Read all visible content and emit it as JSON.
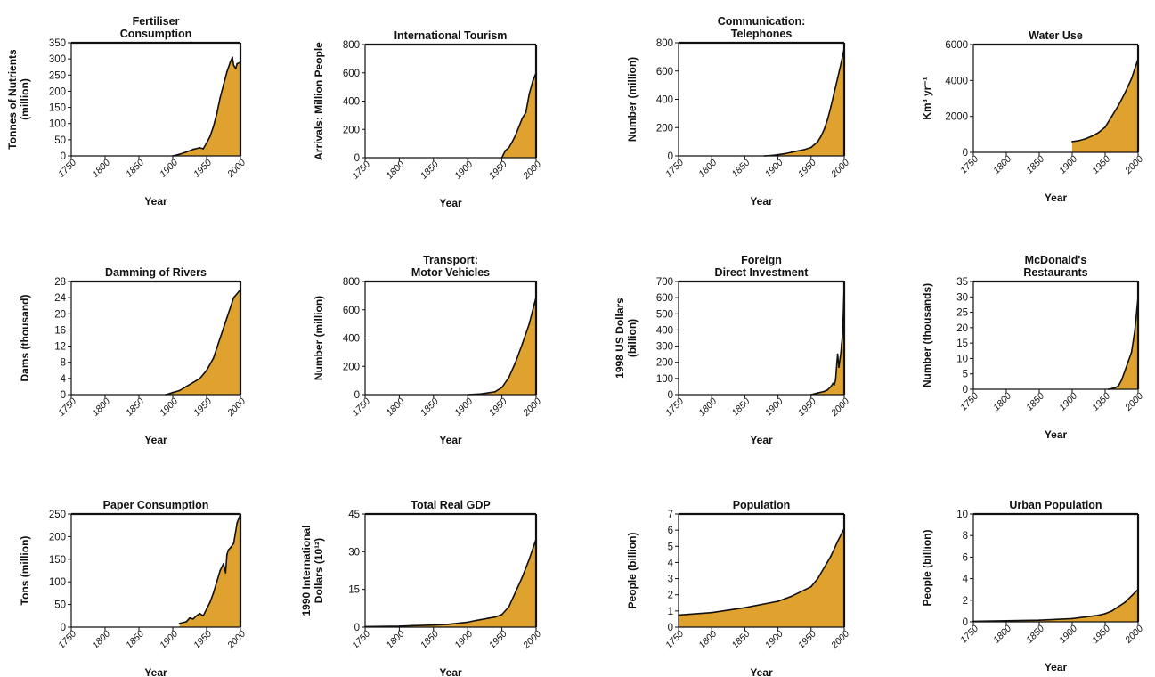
{
  "colors": {
    "fill": "#E0A22E",
    "line": "#111111",
    "frame": "#111111",
    "background": "#ffffff"
  },
  "chart_data": [
    {
      "type": "area",
      "title": [
        "Fertiliser",
        "Consumption"
      ],
      "ylabel": [
        "Tonnes of Nutrients",
        "(million)"
      ],
      "xlabel": "Year",
      "xlim": [
        1750,
        2000
      ],
      "ylim": [
        0,
        350
      ],
      "xticks": [
        "1750",
        "1800",
        "1850",
        "1900",
        "1950",
        "2000"
      ],
      "yticks": [
        "0",
        "50",
        "100",
        "150",
        "200",
        "250",
        "300",
        "350"
      ],
      "x": [
        1900,
        1910,
        1920,
        1930,
        1940,
        1945,
        1950,
        1955,
        1960,
        1965,
        1970,
        1975,
        1980,
        1985,
        1988,
        1990,
        1993,
        1995,
        2000
      ],
      "y": [
        0,
        5,
        12,
        20,
        25,
        22,
        40,
        60,
        90,
        130,
        180,
        220,
        260,
        290,
        305,
        280,
        270,
        285,
        290
      ]
    },
    {
      "type": "area",
      "title": [
        "International Tourism"
      ],
      "ylabel": [
        "Arrivals: Million People"
      ],
      "xlabel": "Year",
      "xlim": [
        1750,
        2000
      ],
      "ylim": [
        0,
        800
      ],
      "xticks": [
        "1750",
        "1800",
        "1850",
        "1900",
        "1950",
        "2000"
      ],
      "yticks": [
        "0",
        "200",
        "400",
        "600",
        "800"
      ],
      "x": [
        1950,
        1955,
        1960,
        1965,
        1970,
        1975,
        1980,
        1985,
        1990,
        1995,
        2000
      ],
      "y": [
        0,
        50,
        70,
        110,
        160,
        220,
        280,
        320,
        450,
        540,
        600
      ]
    },
    {
      "type": "area",
      "title": [
        "Communication:",
        "Telephones"
      ],
      "ylabel": [
        "Number (million)"
      ],
      "xlabel": "Year",
      "xlim": [
        1750,
        2000
      ],
      "ylim": [
        0,
        800
      ],
      "xticks": [
        "1750",
        "1800",
        "1850",
        "1900",
        "1950",
        "2000"
      ],
      "yticks": [
        "0",
        "200",
        "400",
        "600",
        "800"
      ],
      "x": [
        1880,
        1890,
        1900,
        1910,
        1920,
        1930,
        1940,
        1950,
        1960,
        1965,
        1970,
        1975,
        1980,
        1985,
        1990,
        1995,
        2000
      ],
      "y": [
        0,
        3,
        8,
        15,
        25,
        35,
        45,
        60,
        100,
        140,
        190,
        260,
        350,
        450,
        550,
        650,
        760
      ]
    },
    {
      "type": "area",
      "title": [
        "Water Use"
      ],
      "ylabel": [
        "Km³ yr⁻¹"
      ],
      "xlabel": "Year",
      "xlim": [
        1750,
        2000
      ],
      "ylim": [
        0,
        6000
      ],
      "xticks": [
        "1750",
        "1800",
        "1850",
        "1900",
        "1950",
        "2000"
      ],
      "yticks": [
        "0",
        "2000",
        "4000",
        "6000"
      ],
      "x": [
        1900,
        1910,
        1920,
        1930,
        1940,
        1950,
        1960,
        1970,
        1980,
        1990,
        2000
      ],
      "y": [
        600,
        650,
        750,
        900,
        1100,
        1400,
        2000,
        2600,
        3300,
        4100,
        5200
      ]
    },
    {
      "type": "area",
      "title": [
        "Damming of Rivers"
      ],
      "ylabel": [
        "Dams (thousand)"
      ],
      "xlabel": "Year",
      "xlim": [
        1750,
        2000
      ],
      "ylim": [
        0,
        28
      ],
      "xticks": [
        "1750",
        "1800",
        "1850",
        "1900",
        "1950",
        "2000"
      ],
      "yticks": [
        "0",
        "4",
        "8",
        "12",
        "16",
        "20",
        "24",
        "28"
      ],
      "x": [
        1890,
        1900,
        1910,
        1920,
        1930,
        1940,
        1950,
        1960,
        1970,
        1980,
        1990,
        2000
      ],
      "y": [
        0,
        0.5,
        1,
        2,
        3,
        4,
        6,
        9,
        14,
        19,
        24,
        26
      ]
    },
    {
      "type": "area",
      "title": [
        "Transport:",
        "Motor Vehicles"
      ],
      "ylabel": [
        "Number (million)"
      ],
      "xlabel": "Year",
      "xlim": [
        1750,
        2000
      ],
      "ylim": [
        0,
        800
      ],
      "xticks": [
        "1750",
        "1800",
        "1850",
        "1900",
        "1950",
        "2000"
      ],
      "yticks": [
        "0",
        "200",
        "400",
        "600",
        "800"
      ],
      "x": [
        1900,
        1920,
        1940,
        1950,
        1960,
        1970,
        1980,
        1990,
        2000
      ],
      "y": [
        0,
        5,
        20,
        50,
        120,
        230,
        360,
        500,
        690
      ]
    },
    {
      "type": "area",
      "title": [
        "Foreign",
        "Direct Investment"
      ],
      "ylabel": [
        "1998 US Dollars",
        "(billion)"
      ],
      "xlabel": "Year",
      "xlim": [
        1750,
        2000
      ],
      "ylim": [
        0,
        700
      ],
      "xticks": [
        "1750",
        "1800",
        "1850",
        "1900",
        "1950",
        "2000"
      ],
      "yticks": [
        "0",
        "100",
        "200",
        "300",
        "400",
        "500",
        "600",
        "700"
      ],
      "x": [
        1950,
        1960,
        1970,
        1975,
        1980,
        1983,
        1985,
        1987,
        1989,
        1990,
        1992,
        1994,
        1995,
        1996,
        1997,
        1998,
        1999,
        2000
      ],
      "y": [
        0,
        10,
        20,
        30,
        50,
        70,
        60,
        90,
        200,
        250,
        170,
        230,
        260,
        310,
        350,
        420,
        550,
        680
      ]
    },
    {
      "type": "area",
      "title": [
        "McDonald's",
        "Restaurants"
      ],
      "ylabel": [
        "Number (thousands)"
      ],
      "xlabel": "Year",
      "xlim": [
        1750,
        2000
      ],
      "ylim": [
        0,
        35
      ],
      "xticks": [
        "1750",
        "1800",
        "1850",
        "1900",
        "1950",
        "2000"
      ],
      "yticks": [
        "0",
        "5",
        "10",
        "15",
        "20",
        "25",
        "30",
        "35"
      ],
      "x": [
        1955,
        1960,
        1965,
        1970,
        1975,
        1980,
        1985,
        1990,
        1995,
        2000
      ],
      "y": [
        0,
        0.2,
        0.5,
        1,
        3,
        6,
        9,
        12,
        19,
        30
      ]
    },
    {
      "type": "area",
      "title": [
        "Paper Consumption"
      ],
      "ylabel": [
        "Tons (million)"
      ],
      "xlabel": "Year",
      "xlim": [
        1750,
        2000
      ],
      "ylim": [
        0,
        250
      ],
      "xticks": [
        "1750",
        "1800",
        "1850",
        "1900",
        "1950",
        "2000"
      ],
      "yticks": [
        "0",
        "50",
        "100",
        "150",
        "200",
        "250"
      ],
      "x": [
        1910,
        1920,
        1925,
        1930,
        1935,
        1940,
        1945,
        1950,
        1955,
        1960,
        1965,
        1970,
        1975,
        1978,
        1980,
        1982,
        1985,
        1990,
        1995,
        2000
      ],
      "y": [
        8,
        12,
        20,
        18,
        25,
        30,
        25,
        40,
        55,
        75,
        100,
        125,
        140,
        120,
        160,
        170,
        175,
        185,
        230,
        250
      ]
    },
    {
      "type": "area",
      "title": [
        "Total Real GDP"
      ],
      "ylabel": [
        "1990 International",
        "Dollars (10¹²)"
      ],
      "xlabel": "Year",
      "xlim": [
        1750,
        2000
      ],
      "ylim": [
        0,
        45
      ],
      "xticks": [
        "1750",
        "1800",
        "1850",
        "1900",
        "1950",
        "2000"
      ],
      "yticks": [
        "0",
        "15",
        "30",
        "45"
      ],
      "x": [
        1750,
        1800,
        1820,
        1850,
        1870,
        1900,
        1913,
        1930,
        1940,
        1950,
        1960,
        1970,
        1980,
        1990,
        2000
      ],
      "y": [
        0.2,
        0.4,
        0.6,
        0.8,
        1.1,
        2,
        2.7,
        3.5,
        4,
        5,
        8,
        14,
        20,
        27,
        35
      ]
    },
    {
      "type": "area",
      "title": [
        "Population"
      ],
      "ylabel": [
        "People (billion)"
      ],
      "xlabel": "Year",
      "xlim": [
        1750,
        2000
      ],
      "ylim": [
        0,
        7
      ],
      "xticks": [
        "1750",
        "1800",
        "1850",
        "1900",
        "1950",
        "2000"
      ],
      "yticks": [
        "0",
        "1",
        "2",
        "3",
        "4",
        "5",
        "6",
        "7"
      ],
      "x": [
        1750,
        1800,
        1850,
        1900,
        1920,
        1940,
        1950,
        1960,
        1970,
        1980,
        1990,
        2000
      ],
      "y": [
        0.75,
        0.9,
        1.2,
        1.6,
        1.9,
        2.3,
        2.5,
        3.0,
        3.7,
        4.4,
        5.3,
        6.1
      ]
    },
    {
      "type": "area",
      "title": [
        "Urban Population"
      ],
      "ylabel": [
        "People (billion)"
      ],
      "xlabel": "Year",
      "xlim": [
        1750,
        2000
      ],
      "ylim": [
        0,
        10
      ],
      "xticks": [
        "1750",
        "1800",
        "1850",
        "1900",
        "1950",
        "2000"
      ],
      "yticks": [
        "0",
        "2",
        "4",
        "6",
        "8",
        "10"
      ],
      "x": [
        1750,
        1800,
        1850,
        1900,
        1920,
        1940,
        1950,
        1960,
        1970,
        1980,
        1990,
        2000
      ],
      "y": [
        0.05,
        0.1,
        0.15,
        0.3,
        0.45,
        0.6,
        0.75,
        1.0,
        1.4,
        1.8,
        2.4,
        3.0
      ]
    }
  ]
}
